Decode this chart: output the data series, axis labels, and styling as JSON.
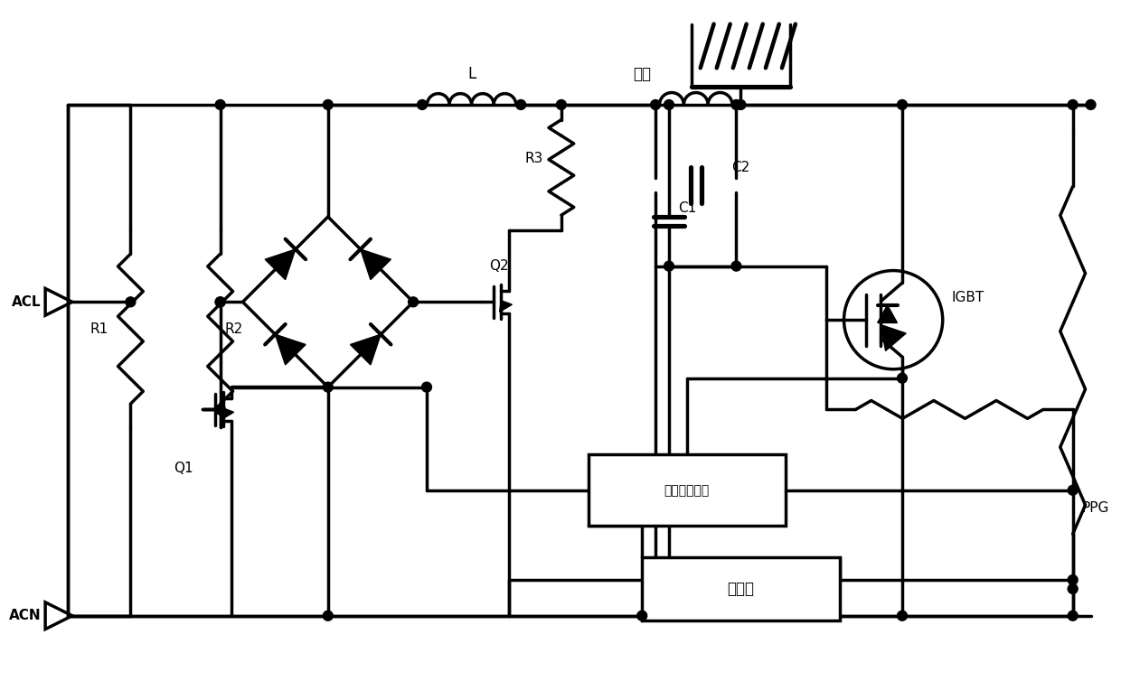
{
  "bg_color": "#ffffff",
  "line_color": "#000000",
  "lw": 2.5,
  "labels": {
    "ACL": "ACL",
    "ACN": "ACN",
    "L": "L",
    "R1": "R1",
    "R2": "R2",
    "R3": "R3",
    "Q1": "Q1",
    "Q2": "Q2",
    "C1": "C1",
    "C2": "C2",
    "IGBT": "IGBT",
    "PPG": "PPG",
    "xianpan": "线盘",
    "huikui": "回馈控制电路",
    "kongzhiqi": "控制器"
  },
  "figsize": [
    12.4,
    7.54
  ],
  "dpi": 100
}
